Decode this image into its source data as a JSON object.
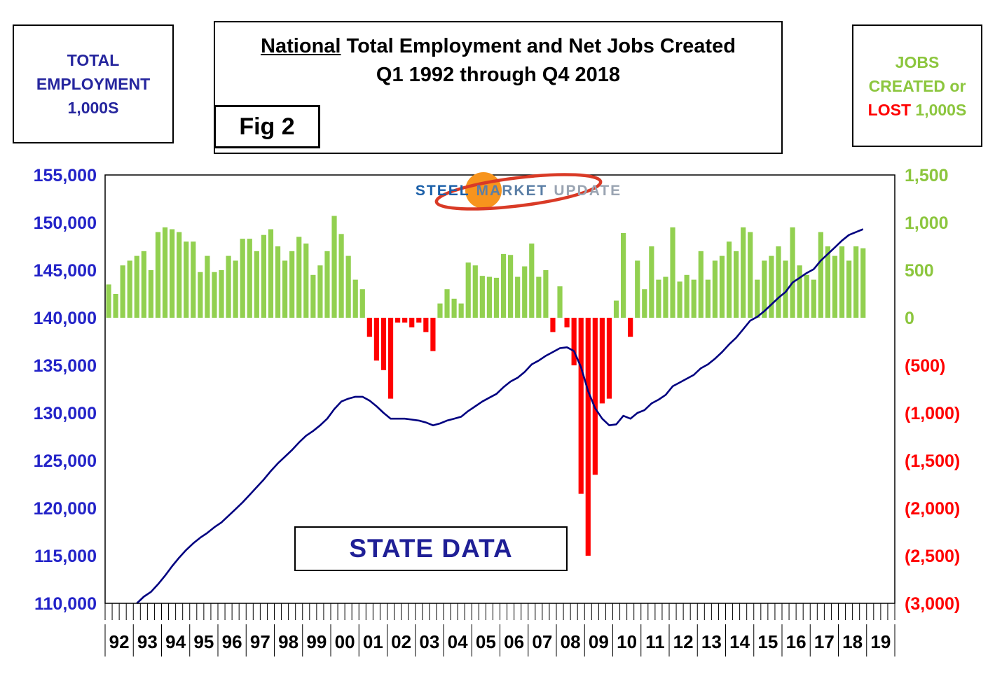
{
  "header": {
    "left_box": {
      "line1": "TOTAL",
      "line2": "EMPLOYMENT",
      "line3": "1,000S"
    },
    "title_box": {
      "title_emph": "National",
      "title_rest": " Total Employment and Net Jobs Created",
      "subtitle": "Q1 1992 through Q4 2018"
    },
    "fig_label": "Fig 2",
    "right_box": {
      "line1": "JOBS",
      "line2": "CREATED or",
      "lost_word": "LOST",
      "units": " 1,000S"
    }
  },
  "logo": {
    "word1": "STEEL",
    "word2": "MARKET",
    "word3": "UPDATE"
  },
  "annotation": "STATE DATA",
  "colors": {
    "bar_positive": "#92D050",
    "bar_negative": "#FF0000",
    "employment_line": "#000080",
    "left_axis_text": "#2323C8",
    "right_axis_positive": "#8CC63E",
    "right_axis_negative": "#FF0000",
    "x_axis_text": "#000000",
    "state_data_text": "#1F1F96",
    "logo_orange": "#F7941D",
    "logo_red": "#D93A26"
  },
  "chart_data": {
    "type": "combo",
    "title": "National Total Employment and Net Jobs Created",
    "subtitle": "Q1 1992 through Q4 2018",
    "grid": "off",
    "x_axis": {
      "year_labels": [
        "92",
        "93",
        "94",
        "95",
        "96",
        "97",
        "98",
        "99",
        "00",
        "01",
        "02",
        "03",
        "04",
        "05",
        "06",
        "07",
        "08",
        "09",
        "10",
        "11",
        "12",
        "13",
        "14",
        "15",
        "16",
        "17",
        "18",
        "19"
      ],
      "quarters_per_year": 4,
      "total_slots": 112
    },
    "left_axis": {
      "title": "Total Employment (1,000s)",
      "min": 110000,
      "max": 155000,
      "step": 5000,
      "labels": [
        "155,000",
        "150,000",
        "145,000",
        "140,000",
        "135,000",
        "130,000",
        "125,000",
        "120,000",
        "115,000",
        "110,000"
      ]
    },
    "right_axis": {
      "title": "Jobs Created or Lost (1,000s)",
      "min": -3000,
      "max": 1500,
      "step": 500,
      "zero_aligns_with_left_value": 140000,
      "labels": [
        "1,500",
        "1,000",
        "500",
        "0",
        "(500)",
        "(1,000)",
        "(1,500)",
        "(2,000)",
        "(2,500)",
        "(3,000)"
      ]
    },
    "bars": {
      "name": "Net Jobs Created or Lost (1,000s)",
      "start": "1992-Q1",
      "values": [
        350,
        250,
        550,
        600,
        650,
        700,
        500,
        900,
        950,
        930,
        900,
        800,
        800,
        480,
        650,
        480,
        500,
        650,
        600,
        830,
        830,
        700,
        870,
        930,
        750,
        600,
        700,
        850,
        780,
        450,
        550,
        700,
        1070,
        880,
        650,
        400,
        300,
        -200,
        -450,
        -550,
        -850,
        -50,
        -50,
        -100,
        -50,
        -150,
        -350,
        150,
        300,
        200,
        150,
        580,
        550,
        440,
        430,
        420,
        670,
        660,
        430,
        540,
        780,
        430,
        500,
        -150,
        330,
        -100,
        -500,
        -1850,
        -2500,
        -1650,
        -900,
        -850,
        180,
        890,
        -200,
        600,
        300,
        750,
        400,
        430,
        950,
        380,
        450,
        400,
        700,
        400,
        600,
        650,
        800,
        700,
        950,
        900,
        400,
        600,
        650,
        750,
        600,
        950,
        550,
        450,
        400,
        900,
        750,
        650,
        750,
        600,
        750,
        730
      ]
    },
    "line": {
      "name": "Total Employment (1,000s)",
      "start": "1992-Q1",
      "values": [
        108400,
        108700,
        109100,
        109700,
        110000,
        110700,
        111200,
        112000,
        112900,
        113900,
        114800,
        115600,
        116300,
        116900,
        117400,
        118000,
        118500,
        119200,
        119900,
        120600,
        121400,
        122200,
        123000,
        123900,
        124700,
        125400,
        126100,
        126900,
        127600,
        128100,
        128700,
        129400,
        130400,
        131200,
        131500,
        131700,
        131700,
        131300,
        130700,
        130000,
        129400,
        129400,
        129400,
        129300,
        129200,
        129000,
        128700,
        128900,
        129200,
        129400,
        129600,
        130200,
        130700,
        131200,
        131600,
        132000,
        132700,
        133300,
        133700,
        134300,
        135100,
        135500,
        136000,
        136400,
        136800,
        136900,
        136500,
        134800,
        132300,
        130500,
        129400,
        128700,
        128800,
        129700,
        129400,
        130000,
        130300,
        131000,
        131400,
        131900,
        132800,
        133200,
        133600,
        134000,
        134700,
        135100,
        135700,
        136400,
        137200,
        137900,
        138800,
        139700,
        140100,
        140700,
        141400,
        142100,
        142700,
        143700,
        144200,
        144700,
        145100,
        146000,
        146700,
        147400,
        148100,
        148700,
        149000,
        149300
      ]
    }
  }
}
